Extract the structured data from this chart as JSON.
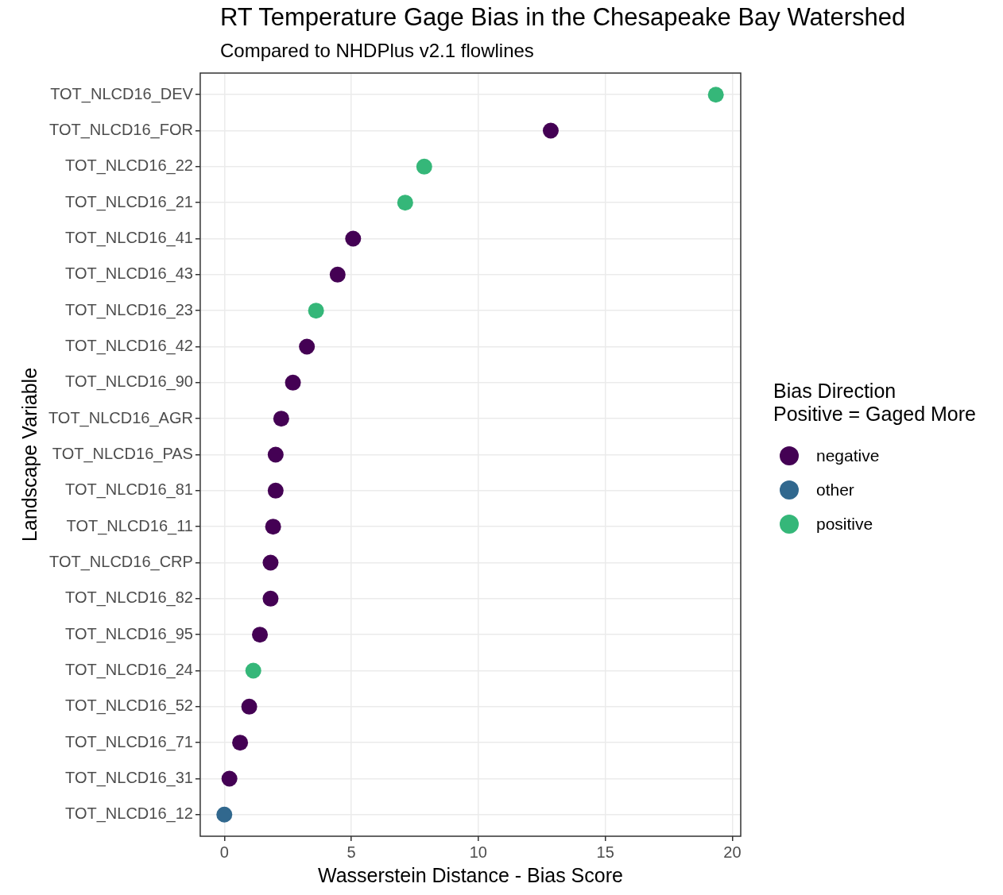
{
  "chart_data": {
    "type": "scatter",
    "title": "RT Temperature Gage Bias in the Chesapeake Bay Watershed",
    "subtitle": "Compared to NHDPlus v2.1 flowlines",
    "xlabel": "Wasserstein Distance - Bias Score",
    "ylabel": "Landscape Variable",
    "legend_title": "Bias Direction\nPositive = Gaged More",
    "orientation": "horizontal",
    "categories": [
      "TOT_NLCD16_DEV",
      "TOT_NLCD16_FOR",
      "TOT_NLCD16_22",
      "TOT_NLCD16_21",
      "TOT_NLCD16_41",
      "TOT_NLCD16_43",
      "TOT_NLCD16_23",
      "TOT_NLCD16_42",
      "TOT_NLCD16_90",
      "TOT_NLCD16_AGR",
      "TOT_NLCD16_PAS",
      "TOT_NLCD16_81",
      "TOT_NLCD16_11",
      "TOT_NLCD16_CRP",
      "TOT_NLCD16_82",
      "TOT_NLCD16_95",
      "TOT_NLCD16_24",
      "TOT_NLCD16_52",
      "TOT_NLCD16_71",
      "TOT_NLCD16_31",
      "TOT_NLCD16_12"
    ],
    "series": [
      {
        "name": "negative",
        "color": "#440154",
        "values": [
          null,
          12.85,
          null,
          null,
          5.07,
          4.46,
          null,
          3.25,
          2.7,
          2.24,
          2.02,
          2.02,
          1.92,
          1.82,
          1.82,
          1.4,
          null,
          0.98,
          0.62,
          0.2,
          null
        ]
      },
      {
        "name": "other",
        "color": "#31688e",
        "values": [
          null,
          null,
          null,
          null,
          null,
          null,
          null,
          null,
          null,
          null,
          null,
          null,
          null,
          null,
          null,
          null,
          null,
          null,
          null,
          null,
          0.0
        ]
      },
      {
        "name": "positive",
        "color": "#35b779",
        "values": [
          19.35,
          null,
          7.87,
          7.12,
          null,
          null,
          3.61,
          null,
          null,
          null,
          null,
          null,
          null,
          null,
          null,
          null,
          1.14,
          null,
          null,
          null,
          null
        ]
      }
    ],
    "xlim": [
      -0.95,
      20.33
    ],
    "xticks": [
      0,
      5,
      10,
      15,
      20
    ],
    "grid": true,
    "legend": "right",
    "marker": "circle"
  }
}
